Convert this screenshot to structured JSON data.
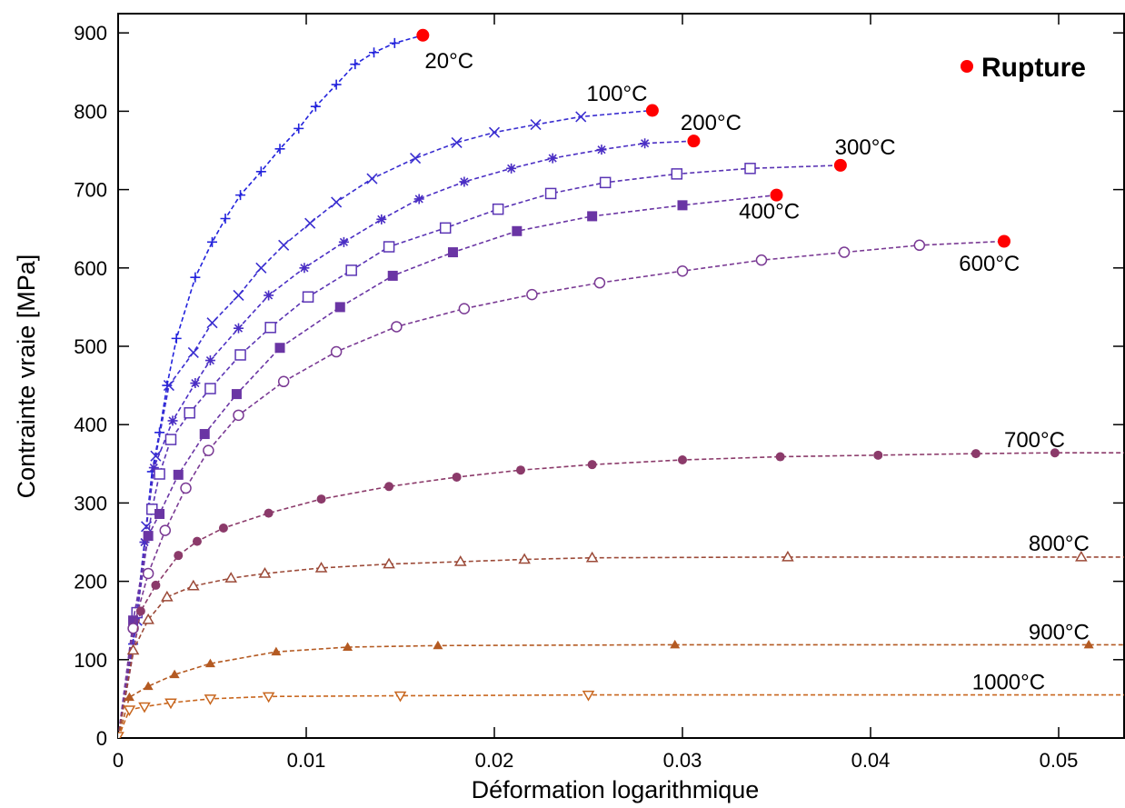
{
  "chart_data": {
    "type": "line",
    "title": "",
    "xlabel": "Déformation logarithmique",
    "ylabel": "Contrainte vraie [MPa]",
    "xlim": [
      0,
      0.0535
    ],
    "ylim": [
      0,
      950
    ],
    "x_ticks": [
      0,
      0.01,
      0.02,
      0.03,
      0.04,
      0.05
    ],
    "x_tick_labels": [
      "0",
      "0.01",
      "0.02",
      "0.03",
      "0.04",
      "0.05"
    ],
    "y_ticks": [
      0,
      100,
      200,
      300,
      400,
      500,
      600,
      700,
      800,
      900
    ],
    "y_tick_labels": [
      "0",
      "100",
      "200",
      "300",
      "400",
      "500",
      "600",
      "700",
      "800",
      "900"
    ],
    "grid": false,
    "legend": {
      "position": "top-right",
      "entries": [
        {
          "label": "Rupture",
          "marker": "filled-circle",
          "color": "#ff0000"
        }
      ]
    },
    "series": [
      {
        "name": "20°C",
        "color": "#2323dc",
        "marker": "plus",
        "x": [
          0,
          0.0008,
          0.0014,
          0.0018,
          0.0022,
          0.0026,
          0.0031,
          0.0041,
          0.005,
          0.0057,
          0.0065,
          0.0076,
          0.0086,
          0.0096,
          0.0105,
          0.0116,
          0.0126,
          0.0136,
          0.0147,
          0.0162
        ],
        "y": [
          0,
          120,
          250,
          340,
          390,
          450,
          510,
          588,
          633,
          663,
          693,
          723,
          752,
          778,
          806,
          834,
          860,
          875,
          887,
          897
        ],
        "rupture": {
          "x": 0.0162,
          "y": 897
        },
        "label_text": "20°C"
      },
      {
        "name": "100°C",
        "color": "#3a2ed0",
        "marker": "x",
        "x": [
          0,
          0.001,
          0.0015,
          0.002,
          0.0027,
          0.004,
          0.005,
          0.0064,
          0.0076,
          0.0088,
          0.0102,
          0.0116,
          0.0135,
          0.0158,
          0.018,
          0.02,
          0.0222,
          0.0246,
          0.0284
        ],
        "y": [
          0,
          150,
          270,
          360,
          450,
          492,
          530,
          565,
          600,
          629,
          657,
          684,
          714,
          740,
          760,
          773,
          783,
          793,
          801
        ],
        "rupture": {
          "x": 0.0284,
          "y": 801
        },
        "label_text": "100°C"
      },
      {
        "name": "200°C",
        "color": "#4a2ec4",
        "marker": "asterisk",
        "x": [
          0,
          0.001,
          0.0014,
          0.0019,
          0.0029,
          0.0041,
          0.0049,
          0.0064,
          0.008,
          0.0099,
          0.012,
          0.014,
          0.016,
          0.0184,
          0.0209,
          0.0231,
          0.0257,
          0.028,
          0.0306
        ],
        "y": [
          0,
          160,
          250,
          345,
          405,
          453,
          482,
          523,
          565,
          600,
          633,
          662,
          688,
          710,
          727,
          740,
          751,
          759,
          762
        ],
        "rupture": {
          "x": 0.0306,
          "y": 762
        },
        "label_text": "200°C"
      },
      {
        "name": "300°C",
        "color": "#5a34b4",
        "marker": "open-square",
        "x": [
          0,
          0.001,
          0.0018,
          0.0022,
          0.0028,
          0.0038,
          0.0049,
          0.0065,
          0.0081,
          0.0101,
          0.0124,
          0.0144,
          0.0174,
          0.0202,
          0.023,
          0.0259,
          0.0297,
          0.0336,
          0.0384
        ],
        "y": [
          0,
          160,
          292,
          337,
          381,
          415,
          446,
          489,
          524,
          563,
          597,
          627,
          651,
          675,
          695,
          709,
          720,
          727,
          731
        ],
        "rupture": {
          "x": 0.0384,
          "y": 731
        },
        "label_text": "300°C"
      },
      {
        "name": "400°C",
        "color": "#6a35a4",
        "marker": "filled-square",
        "x": [
          0,
          0.0008,
          0.0016,
          0.0022,
          0.0032,
          0.0046,
          0.0063,
          0.0086,
          0.0118,
          0.0146,
          0.0178,
          0.0212,
          0.0252,
          0.03,
          0.035
        ],
        "y": [
          0,
          150,
          258,
          286,
          336,
          388,
          439,
          498,
          550,
          590,
          620,
          647,
          666,
          680,
          693
        ],
        "rupture": {
          "x": 0.035,
          "y": 693
        },
        "label_text": "400°C"
      },
      {
        "name": "600°C",
        "color": "#7a3a94",
        "marker": "open-circle",
        "x": [
          0,
          0.0008,
          0.0016,
          0.0025,
          0.0036,
          0.0048,
          0.0064,
          0.0088,
          0.0116,
          0.0148,
          0.0184,
          0.022,
          0.0256,
          0.03,
          0.0342,
          0.0386,
          0.0426,
          0.0471
        ],
        "y": [
          0,
          140,
          210,
          265,
          319,
          367,
          412,
          455,
          493,
          525,
          548,
          566,
          581,
          596,
          610,
          620,
          629,
          634
        ],
        "rupture": {
          "x": 0.0471,
          "y": 634
        },
        "label_text": "600°C"
      },
      {
        "name": "700°C",
        "color": "#8b3a6a",
        "marker": "filled-circle",
        "x": [
          0,
          0.0012,
          0.002,
          0.0032,
          0.0042,
          0.0056,
          0.008,
          0.0108,
          0.0144,
          0.018,
          0.0214,
          0.0252,
          0.03,
          0.0352,
          0.0404,
          0.0456,
          0.0498,
          0.0535
        ],
        "y": [
          0,
          162,
          195,
          233,
          251,
          268,
          287,
          305,
          321,
          333,
          342,
          349,
          355,
          359,
          361,
          363,
          364,
          364
        ],
        "rupture": null,
        "label_text": "700°C"
      },
      {
        "name": "800°C",
        "color": "#9c4a38",
        "marker": "open-triangle-up",
        "x": [
          0,
          0.0008,
          0.0016,
          0.0026,
          0.004,
          0.006,
          0.0078,
          0.0108,
          0.0144,
          0.0182,
          0.0216,
          0.0252,
          0.0356,
          0.0512,
          0.0535
        ],
        "y": [
          0,
          112,
          151,
          180,
          194,
          204,
          210,
          217,
          222,
          225,
          228,
          230,
          231,
          231,
          231
        ],
        "rupture": null,
        "label_text": "800°C"
      },
      {
        "name": "900°C",
        "color": "#b45a22",
        "marker": "filled-triangle-up",
        "x": [
          0,
          0.0006,
          0.0016,
          0.003,
          0.0049,
          0.0084,
          0.0122,
          0.017,
          0.0296,
          0.0516,
          0.0535
        ],
        "y": [
          0,
          52,
          66,
          81,
          95,
          110,
          116,
          118,
          119,
          119,
          119
        ],
        "rupture": null,
        "label_text": "900°C"
      },
      {
        "name": "1000°C",
        "color": "#c8661e",
        "marker": "open-triangle-down",
        "x": [
          0,
          0.0006,
          0.0014,
          0.0028,
          0.0049,
          0.008,
          0.015,
          0.025,
          0.0535
        ],
        "y": [
          0,
          36,
          40,
          45,
          50,
          53,
          54,
          55,
          55
        ],
        "rupture": null,
        "label_text": "1000°C"
      }
    ],
    "series_label_positions": {
      "20°C": [
        0.0163,
        855
      ],
      "100°C": [
        0.0249,
        813
      ],
      "200°C": [
        0.0299,
        776
      ],
      "300°C": [
        0.0381,
        745
      ],
      "400°C": [
        0.033,
        663
      ],
      "600°C": [
        0.0447,
        596
      ],
      "700°C": [
        0.0471,
        371
      ],
      "800°C": [
        0.0484,
        239
      ],
      "900°C": [
        0.0484,
        126
      ],
      "1000°C": [
        0.0454,
        62
      ]
    }
  }
}
